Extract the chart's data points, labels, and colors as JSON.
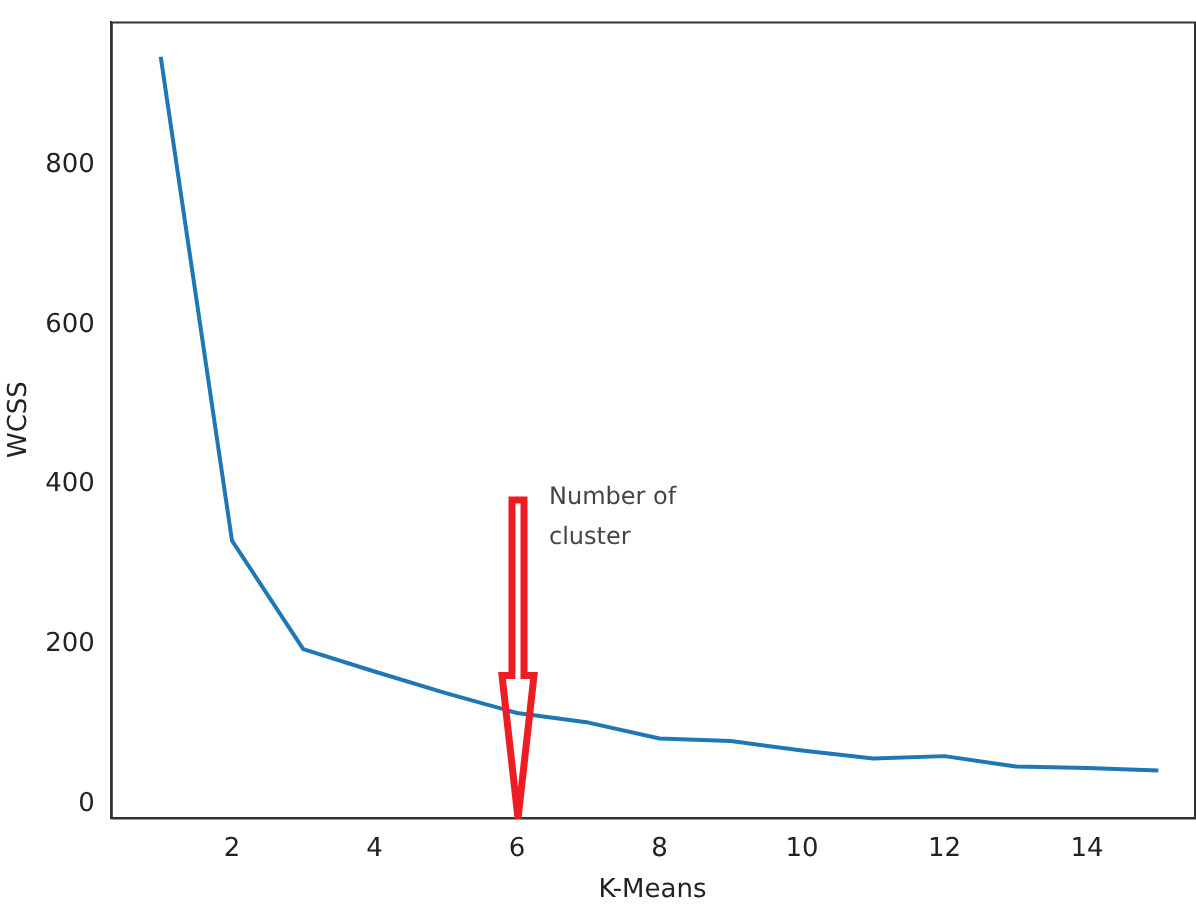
{
  "chart_data": {
    "type": "line",
    "xlabel": "K-Means",
    "ylabel": "WCSS",
    "x": [
      1,
      2,
      3,
      4,
      5,
      6,
      7,
      8,
      9,
      10,
      11,
      12,
      13,
      14,
      15
    ],
    "series": [
      {
        "color": "#1f77b4",
        "values": [
          936,
          330,
          194,
          166,
          139,
          114,
          102,
          82,
          79,
          67,
          57,
          60,
          47,
          45,
          42
        ]
      }
    ],
    "xlim": [
      0.3,
      15.5
    ],
    "xticks": [
      2,
      4,
      6,
      8,
      10,
      12,
      14
    ],
    "ylim": [
      -17,
      980
    ],
    "yticks": [
      0,
      200,
      400,
      600,
      800
    ],
    "grid": false,
    "legend": false,
    "annotations": [
      "Number of cluster"
    ]
  }
}
